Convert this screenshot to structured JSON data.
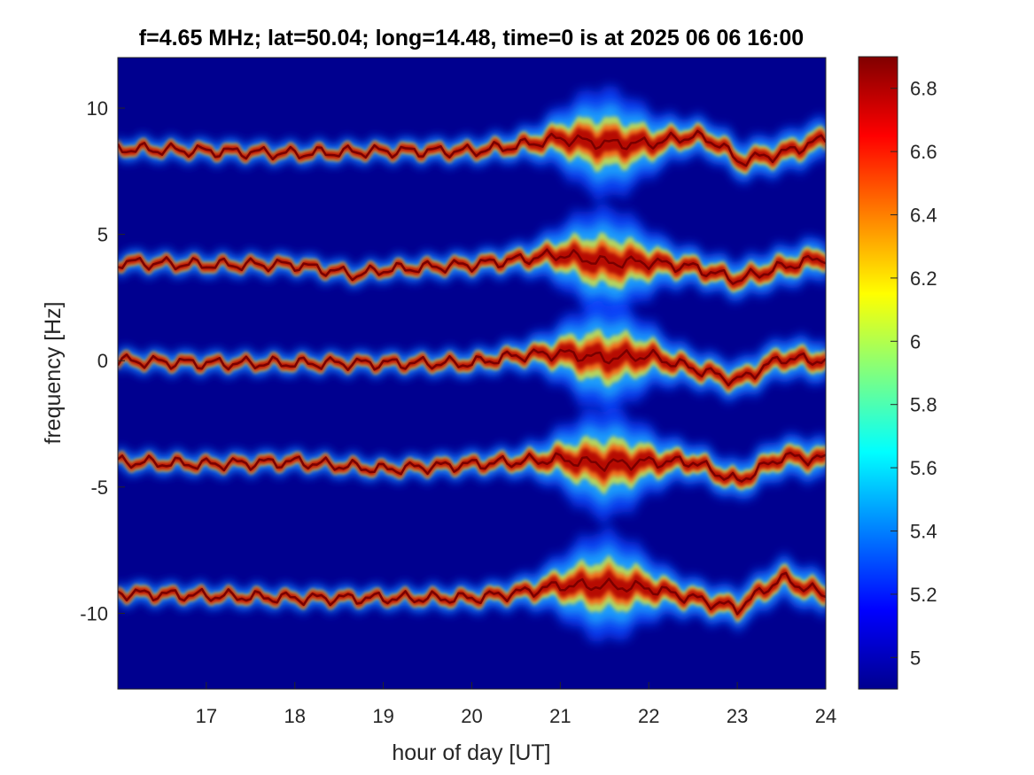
{
  "chart_data": {
    "type": "heatmap",
    "title": "f=4.65 MHz;  lat=50.04; long=14.48, time=0 is at 2025 06 06 16:00",
    "xlabel": "hour of day [UT]",
    "ylabel": "frequency [Hz]",
    "xlim": [
      16,
      24
    ],
    "ylim": [
      -13,
      12
    ],
    "x_ticks": [
      17,
      18,
      19,
      20,
      21,
      22,
      23,
      24
    ],
    "y_ticks": [
      10,
      5,
      0,
      -5,
      -10
    ],
    "colorbar": {
      "colormap": "jet",
      "range": [
        4.9,
        6.9
      ],
      "ticks": [
        6.8,
        6.6,
        6.4,
        6.2,
        6,
        5.8,
        5.6,
        5.4,
        5.2,
        5
      ]
    },
    "traces": [
      {
        "center": 8.4,
        "points": [
          [
            16.0,
            8.4
          ],
          [
            17.0,
            8.3
          ],
          [
            18.0,
            8.2
          ],
          [
            19.0,
            8.3
          ],
          [
            20.0,
            8.3
          ],
          [
            20.5,
            8.5
          ],
          [
            21.0,
            8.8
          ],
          [
            21.5,
            8.6
          ],
          [
            22.0,
            8.6
          ],
          [
            22.5,
            8.9
          ],
          [
            22.8,
            8.6
          ],
          [
            23.0,
            7.9
          ],
          [
            23.5,
            8.2
          ],
          [
            24.0,
            8.8
          ]
        ]
      },
      {
        "center": 3.9,
        "points": [
          [
            16.0,
            3.9
          ],
          [
            17.0,
            3.8
          ],
          [
            18.0,
            3.8
          ],
          [
            18.7,
            3.4
          ],
          [
            19.0,
            3.6
          ],
          [
            20.0,
            3.8
          ],
          [
            20.5,
            4.0
          ],
          [
            21.0,
            4.2
          ],
          [
            21.5,
            3.9
          ],
          [
            22.0,
            3.9
          ],
          [
            22.5,
            3.7
          ],
          [
            23.0,
            3.2
          ],
          [
            23.5,
            3.7
          ],
          [
            24.0,
            4.1
          ]
        ]
      },
      {
        "center": 0.0,
        "points": [
          [
            16.0,
            0.0
          ],
          [
            17.0,
            -0.1
          ],
          [
            18.0,
            -0.1
          ],
          [
            19.0,
            -0.1
          ],
          [
            20.0,
            -0.1
          ],
          [
            20.5,
            0.2
          ],
          [
            21.0,
            0.3
          ],
          [
            21.5,
            0.1
          ],
          [
            22.0,
            0.2
          ],
          [
            22.5,
            -0.3
          ],
          [
            23.0,
            -0.8
          ],
          [
            23.5,
            0.1
          ],
          [
            24.0,
            0.0
          ]
        ]
      },
      {
        "center": -4.0,
        "points": [
          [
            16.0,
            -4.0
          ],
          [
            17.0,
            -4.1
          ],
          [
            18.0,
            -4.0
          ],
          [
            19.0,
            -4.3
          ],
          [
            20.0,
            -4.1
          ],
          [
            20.5,
            -4.0
          ],
          [
            21.0,
            -3.9
          ],
          [
            21.5,
            -4.1
          ],
          [
            22.0,
            -4.0
          ],
          [
            22.5,
            -4.0
          ],
          [
            23.0,
            -4.8
          ],
          [
            23.5,
            -3.8
          ],
          [
            24.0,
            -3.9
          ]
        ]
      },
      {
        "center": -9.2,
        "points": [
          [
            16.0,
            -9.2
          ],
          [
            17.0,
            -9.3
          ],
          [
            18.0,
            -9.4
          ],
          [
            19.0,
            -9.4
          ],
          [
            20.0,
            -9.4
          ],
          [
            20.5,
            -9.2
          ],
          [
            21.0,
            -8.9
          ],
          [
            21.5,
            -8.9
          ],
          [
            22.0,
            -9.0
          ],
          [
            22.5,
            -9.4
          ],
          [
            23.0,
            -9.8
          ],
          [
            23.5,
            -8.6
          ],
          [
            24.0,
            -9.3
          ]
        ]
      }
    ]
  }
}
